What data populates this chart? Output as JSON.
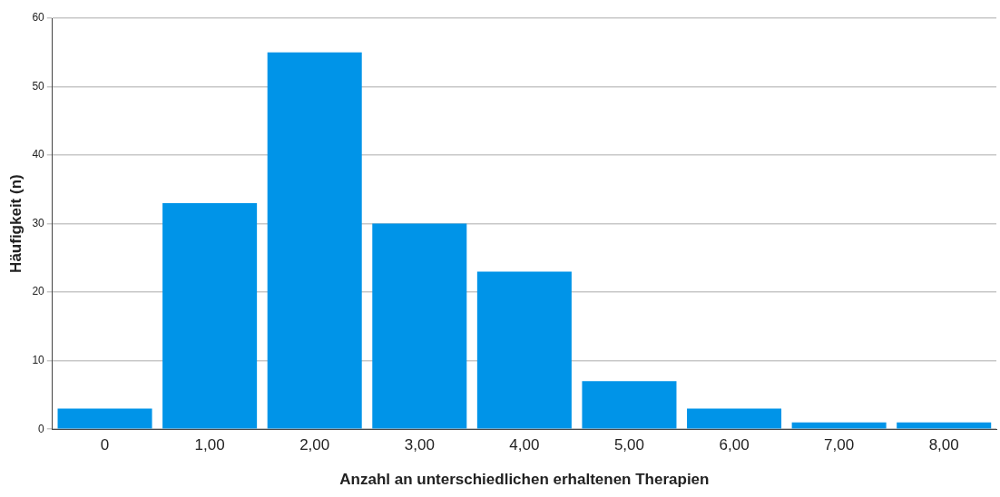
{
  "chart_data": {
    "type": "bar",
    "xlabel": "Anzahl an unterschiedlichen erhaltenen Therapien",
    "ylabel": "Häufigkeit (n)",
    "categories": [
      "0",
      "1,00",
      "2,00",
      "3,00",
      "4,00",
      "5,00",
      "6,00",
      "7,00",
      "8,00"
    ],
    "values": [
      3,
      33,
      55,
      30,
      23,
      7,
      3,
      1,
      1
    ],
    "color": "#0094e8",
    "ylim": [
      0,
      60
    ],
    "yticks": [
      0,
      10,
      20,
      30,
      40,
      50,
      60
    ],
    "grid": "y",
    "legend": false
  }
}
